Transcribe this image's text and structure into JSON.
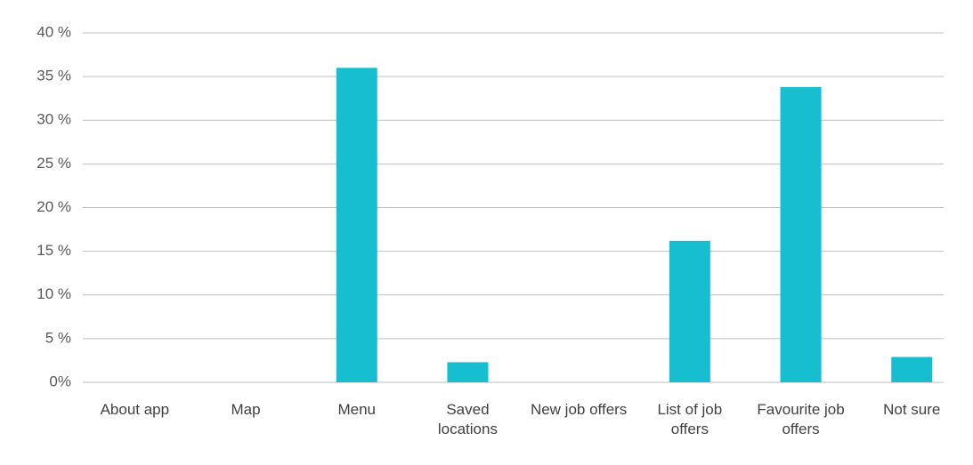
{
  "chart_data": {
    "type": "bar",
    "categories": [
      "About app",
      "Map",
      "Menu",
      "Saved locations",
      "New job offers",
      "List of job offers",
      "Favourite job offers",
      "Not sure"
    ],
    "values": [
      0,
      0,
      36,
      2.3,
      0,
      16.2,
      33.8,
      2.9
    ],
    "color": "#17becf",
    "ylim": [
      0,
      40
    ],
    "yticks": [
      {
        "value": 0,
        "label": "0%"
      },
      {
        "value": 5,
        "label": "5 %"
      },
      {
        "value": 10,
        "label": "10 %"
      },
      {
        "value": 15,
        "label": "15 %"
      },
      {
        "value": 20,
        "label": "20 %"
      },
      {
        "value": 25,
        "label": "25 %"
      },
      {
        "value": 30,
        "label": "30 %"
      },
      {
        "value": 35,
        "label": "35 %"
      },
      {
        "value": 40,
        "label": "40 %"
      }
    ],
    "grid": true
  }
}
